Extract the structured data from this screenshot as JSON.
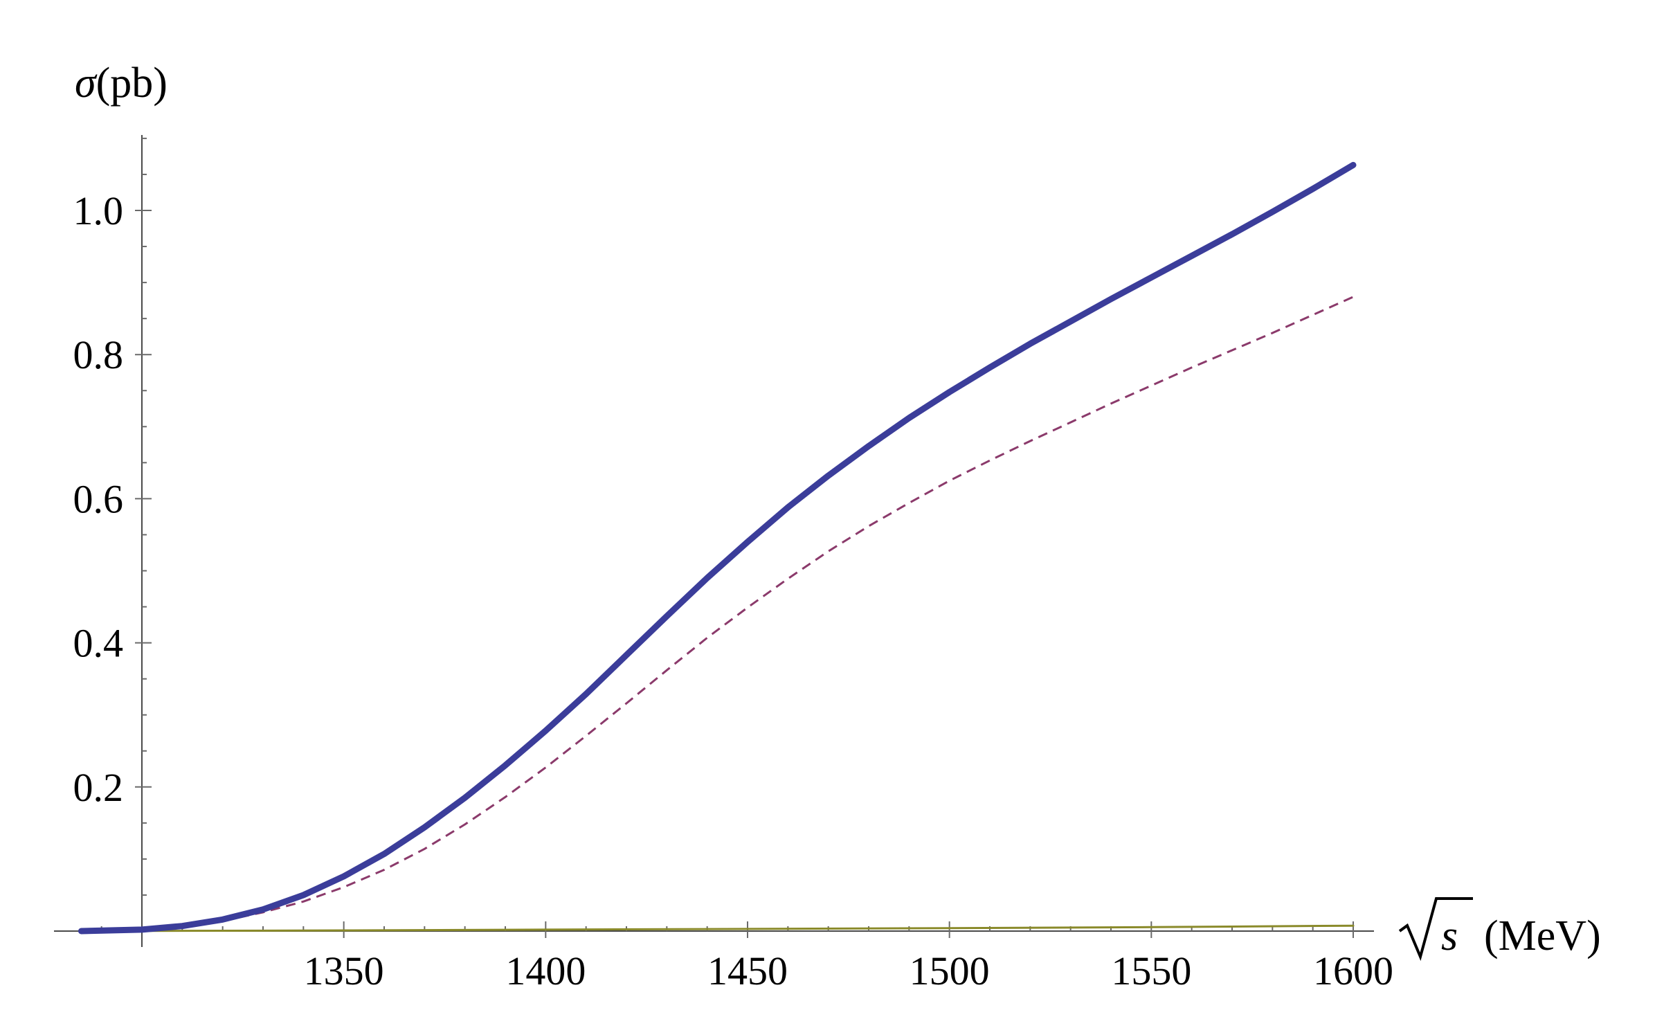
{
  "chart_data": {
    "type": "line",
    "title": "",
    "ylabel_symbol": "σ",
    "ylabel_unit": "(pb)",
    "xlabel_symbol": "s",
    "xlabel_unit": "(MeV)",
    "xlim": [
      1285,
      1600
    ],
    "ylim": [
      0,
      1.1
    ],
    "xticks": [
      1350,
      1400,
      1450,
      1500,
      1550,
      1600
    ],
    "yticks": [
      0.2,
      0.4,
      0.6,
      0.8,
      1.0
    ],
    "ytick_labels": [
      "0.2",
      "0.4",
      "0.6",
      "0.8",
      "1.0"
    ],
    "grid": false,
    "legend": false,
    "series": [
      {
        "style": "solid-thick",
        "color": "#3b3d9a",
        "x": [
          1285,
          1300,
          1310,
          1320,
          1330,
          1340,
          1350,
          1360,
          1370,
          1380,
          1390,
          1400,
          1410,
          1420,
          1430,
          1440,
          1450,
          1460,
          1470,
          1480,
          1490,
          1500,
          1510,
          1520,
          1530,
          1540,
          1550,
          1560,
          1570,
          1580,
          1590,
          1600
        ],
        "y": [
          0,
          0.002,
          0.007,
          0.016,
          0.03,
          0.05,
          0.076,
          0.107,
          0.144,
          0.185,
          0.23,
          0.278,
          0.329,
          0.383,
          0.437,
          0.49,
          0.54,
          0.588,
          0.632,
          0.673,
          0.712,
          0.748,
          0.782,
          0.815,
          0.846,
          0.877,
          0.907,
          0.937,
          0.967,
          0.998,
          1.03,
          1.063
        ]
      },
      {
        "style": "dashed",
        "color": "#8b3a6b",
        "x": [
          1285,
          1300,
          1310,
          1320,
          1330,
          1340,
          1350,
          1360,
          1370,
          1380,
          1390,
          1400,
          1410,
          1420,
          1430,
          1440,
          1450,
          1460,
          1470,
          1480,
          1490,
          1500,
          1510,
          1520,
          1530,
          1540,
          1550,
          1560,
          1570,
          1580,
          1590,
          1600
        ],
        "y": [
          0,
          0.002,
          0.006,
          0.014,
          0.026,
          0.041,
          0.061,
          0.085,
          0.114,
          0.148,
          0.186,
          0.227,
          0.271,
          0.316,
          0.362,
          0.407,
          0.449,
          0.489,
          0.527,
          0.562,
          0.594,
          0.625,
          0.653,
          0.68,
          0.706,
          0.732,
          0.757,
          0.782,
          0.806,
          0.83,
          0.855,
          0.88
        ]
      },
      {
        "style": "solid-thin",
        "color": "#8a8a2a",
        "x": [
          1285,
          1300,
          1350,
          1400,
          1450,
          1500,
          1550,
          1600
        ],
        "y": [
          0,
          0.0002,
          0.001,
          0.002,
          0.003,
          0.004,
          0.0055,
          0.0075
        ]
      }
    ]
  }
}
